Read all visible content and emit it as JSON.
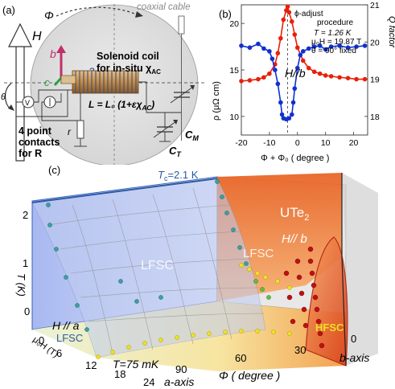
{
  "figure": {
    "panel_a": {
      "label": "(a)",
      "field_axis": "H",
      "phi": "Φ",
      "theta": "θ",
      "axis_a": "a",
      "axis_b": "b",
      "axis_c": "c",
      "coaxial": "coaxial cable",
      "solenoid_line1": "Solenoid coil",
      "solenoid_line2": "for in-situ χ",
      "solenoid_sub": "AC",
      "inductance": "L = L₀ (1+εχ",
      "inductance_sub": "AC",
      "inductance_close": ")",
      "contacts_line1": "4 point",
      "contacts_line2": "contacts",
      "contacts_line3": "for R",
      "cm": "C",
      "cm_sub": "M",
      "ct": "C",
      "ct_sub": "T",
      "r_symbol": "r",
      "v_symbol": "V",
      "colors": {
        "a_arrow": "#1f3fa0",
        "b_arrow": "#c0306a",
        "c_arrow": "#2aa04a",
        "coil": "#c98a3a"
      }
    },
    "panel_b": {
      "label": "(b)",
      "annot_line1": "ϕ-adjust",
      "annot_line2": "procedure",
      "annot_T": "T = 1.26 K",
      "annot_H": "μ₀H = 19.87 T",
      "annot_theta": "θ = 90° fixed",
      "h_parallel": "H//b",
      "y_left_label": "ρ (μΩ cm)",
      "y_right_label": "Q factor",
      "x_label": "Φ + Φ₀ ( degree )",
      "x_ticks": [
        "-20",
        "-10",
        "0",
        "10",
        "20"
      ],
      "y_left_ticks": [
        "10",
        "15",
        "20"
      ],
      "y_right_ticks": [
        "18",
        "19",
        "20",
        "21"
      ],
      "colors": {
        "q_series": "#e8200a",
        "rho_series": "#1030d0"
      }
    },
    "panel_c": {
      "label": "(c)",
      "tc_label": "T",
      "tc_sub": "c",
      "tc_value": "=2.1 K",
      "material": "UTe",
      "material_sub": "2",
      "h_b": "H// b",
      "h_a": "H // a",
      "lfsc_1": "LFSC",
      "lfsc_2": "LFSC",
      "lfsc_3": "LFSC",
      "hfsc": "HFSC",
      "t75": "T=75 mK",
      "t_axis": "T (K)",
      "h_axis": "μ₀H (T)",
      "phi_axis": "Φ ( degree )",
      "a_axis": "a-axis",
      "b_axis": "b-axis",
      "t_ticks": [
        "0",
        "1",
        "2"
      ],
      "h_ticks": [
        "0",
        "6",
        "12",
        "18",
        "24"
      ],
      "phi_ticks": [
        "90",
        "60",
        "30",
        "0"
      ],
      "colors": {
        "lfsc": "#9aaee8",
        "hfsc": "#e8501a",
        "dots_yellow": "#f0e020",
        "dots_red": "#c01010",
        "dots_teal": "#3aa0a0"
      }
    }
  },
  "chart_data": {
    "type": "line",
    "title": "",
    "xlabel": "Φ + Φ₀ ( degree )",
    "ylabel": "ρ (μΩ cm)",
    "y2label": "Q factor",
    "xlim": [
      -20,
      25
    ],
    "ylim": [
      8,
      22
    ],
    "y2lim": [
      17.5,
      21
    ],
    "series": [
      {
        "axis": "right",
        "x": [
          -20,
          -17,
          -14,
          -12,
          -10,
          -8,
          -7,
          -6,
          -5,
          -4,
          -3.5,
          -3,
          -2,
          -1,
          0,
          2,
          4,
          6,
          8,
          10,
          12,
          15,
          18,
          21,
          24
        ],
        "y": [
          18.95,
          18.97,
          19.0,
          19.05,
          19.15,
          19.4,
          19.7,
          20.1,
          20.6,
          20.85,
          20.95,
          20.8,
          20.55,
          20.2,
          19.85,
          19.5,
          19.3,
          19.2,
          19.15,
          19.1,
          19.08,
          19.05,
          19.03,
          19.0,
          19.0
        ]
      },
      {
        "axis": "left",
        "x": [
          -20,
          -17,
          -14,
          -12,
          -10,
          -9,
          -8,
          -7,
          -6,
          -5.5,
          -5,
          -4,
          -3,
          -2,
          -1.5,
          -1,
          0,
          1,
          2,
          4,
          6,
          8,
          10,
          12,
          15,
          18,
          21,
          24
        ],
        "y": [
          17.6,
          17.4,
          17.8,
          17.3,
          17.0,
          16.2,
          15.0,
          13.5,
          11.5,
          10.2,
          9.8,
          9.7,
          9.8,
          10.2,
          11.5,
          13.0,
          15.2,
          16.6,
          17.0,
          17.3,
          17.5,
          17.6,
          17.2,
          17.5,
          17.6,
          17.4,
          17.5,
          17.6
        ]
      }
    ]
  }
}
